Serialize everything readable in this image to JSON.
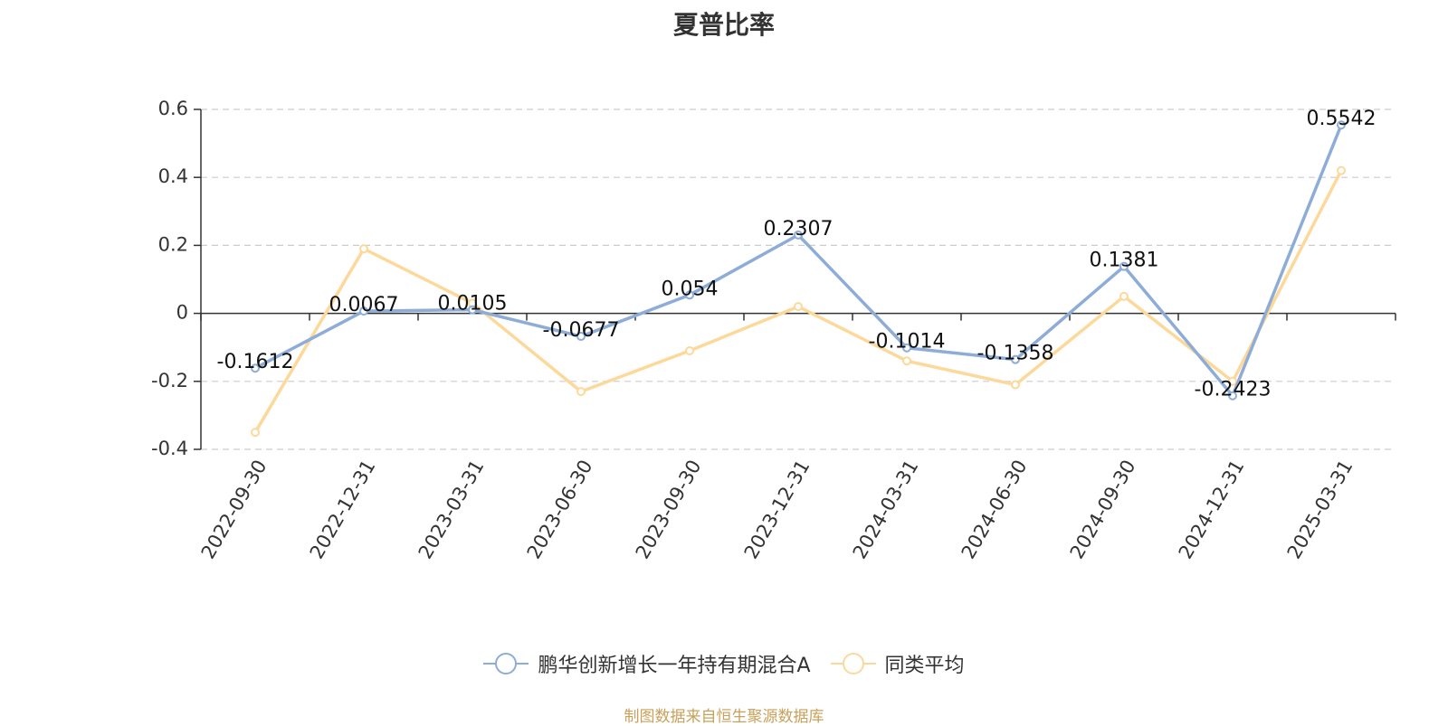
{
  "chart_data": {
    "type": "line",
    "title": "夏普比率",
    "categories": [
      "2022-09-30",
      "2022-12-31",
      "2023-03-31",
      "2023-06-30",
      "2023-09-30",
      "2023-12-31",
      "2024-03-31",
      "2024-06-30",
      "2024-09-30",
      "2024-12-31",
      "2025-03-31"
    ],
    "series": [
      {
        "name": "鹏华创新增长一年持有期混合A",
        "color": "#8eacd8",
        "values": [
          -0.1612,
          0.0067,
          0.0105,
          -0.0677,
          0.054,
          0.2307,
          -0.1014,
          -0.1358,
          0.1381,
          -0.2423,
          0.5542
        ],
        "labels": [
          "-0.1612",
          "0.0067",
          "0.0105",
          "-0.0677",
          "0.054",
          "0.2307",
          "-0.1014",
          "-0.1358",
          "0.1381",
          "-0.2423",
          "0.5542"
        ]
      },
      {
        "name": "同类平均",
        "color": "#fcd99a",
        "values": [
          -0.35,
          0.19,
          0.03,
          -0.23,
          -0.11,
          0.02,
          -0.14,
          -0.21,
          0.05,
          -0.2,
          0.42
        ]
      }
    ],
    "ylim": [
      -0.4,
      0.6
    ],
    "yticks": [
      -0.4,
      -0.2,
      0,
      0.2,
      0.4,
      0.6
    ],
    "ytick_labels": [
      "-0.4",
      "-0.2",
      "0",
      "0.2",
      "0.4",
      "0.6"
    ],
    "grid": true,
    "legend_position": "bottom"
  },
  "footer": {
    "source_note": "制图数据来自恒生聚源数据库"
  }
}
